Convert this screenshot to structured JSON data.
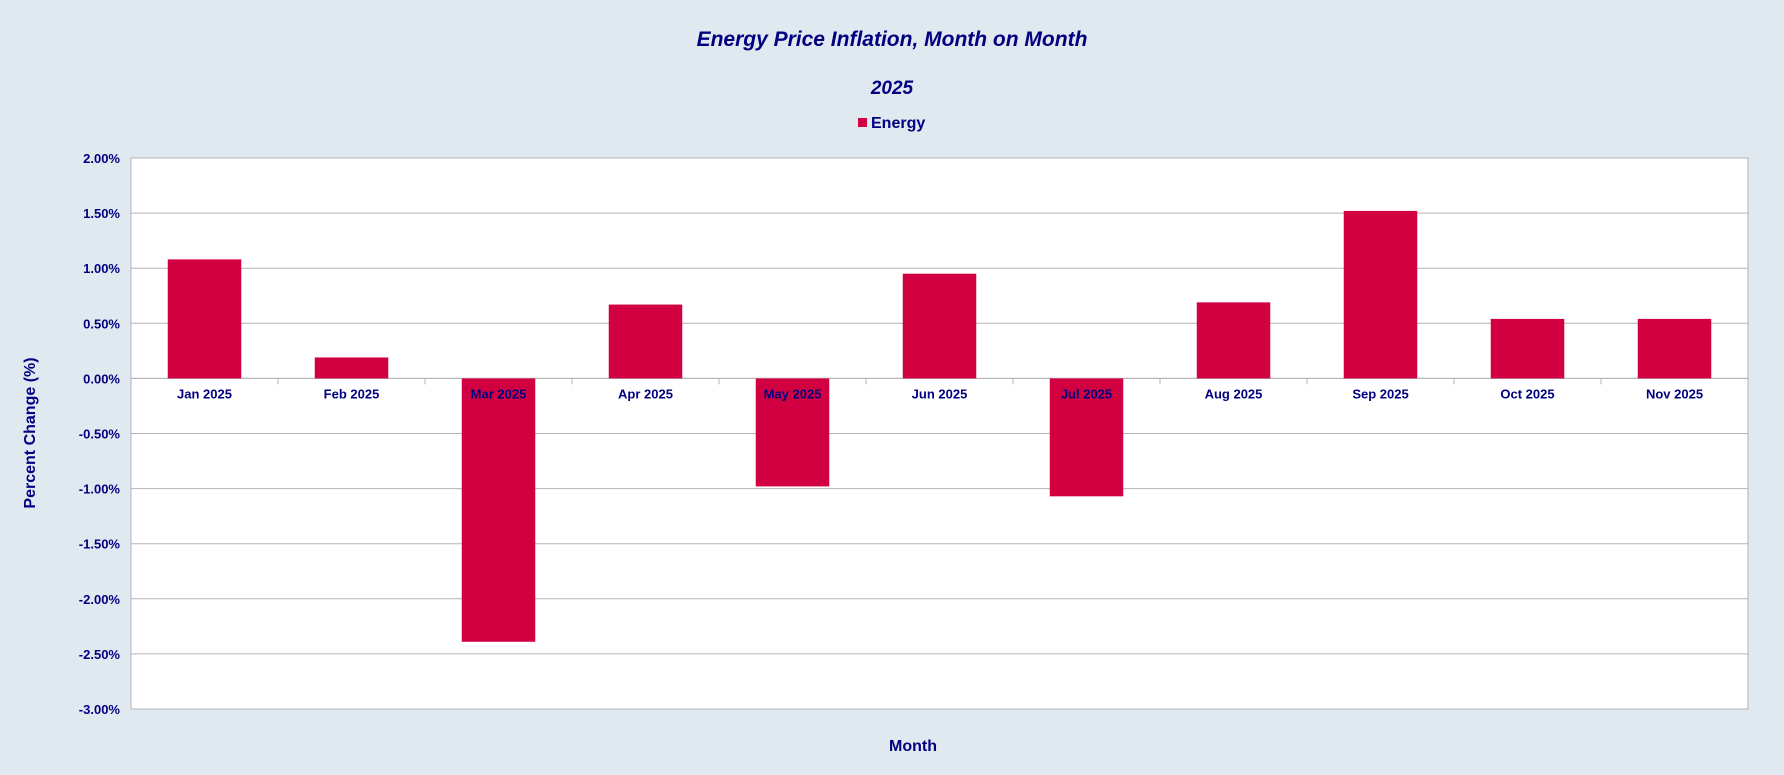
{
  "colors": {
    "background": "#e0e8f0",
    "plot_background": "#ffffff",
    "grid": "#b3b3b3",
    "text": "#000080",
    "bar": "#d10041"
  },
  "chart_data": {
    "type": "bar",
    "title": "Energy Price Inflation, Month on Month",
    "subtitle": "2025",
    "xlabel": "Month",
    "ylabel": "Percent Change (%)",
    "legend_position": "top-center",
    "grid": true,
    "ylim": [
      -3.0,
      2.0
    ],
    "yticks": [
      2.0,
      1.5,
      1.0,
      0.5,
      0.0,
      -0.5,
      -1.0,
      -1.5,
      -2.0,
      -2.5,
      -3.0
    ],
    "ytick_labels": [
      "2.00%",
      "1.50%",
      "1.00%",
      "0.50%",
      "0.00%",
      "-0.50%",
      "-1.00%",
      "-1.50%",
      "-2.00%",
      "-2.50%",
      "-3.00%"
    ],
    "categories": [
      "Jan 2025",
      "Feb 2025",
      "Mar 2025",
      "Apr 2025",
      "May 2025",
      "Jun 2025",
      "Jul 2025",
      "Aug 2025",
      "Sep 2025",
      "Oct 2025",
      "Nov 2025"
    ],
    "series": [
      {
        "name": "Energy",
        "values": [
          1.08,
          0.19,
          -2.39,
          0.67,
          -0.98,
          0.95,
          -1.07,
          0.69,
          1.52,
          0.54,
          0.54
        ]
      }
    ]
  }
}
